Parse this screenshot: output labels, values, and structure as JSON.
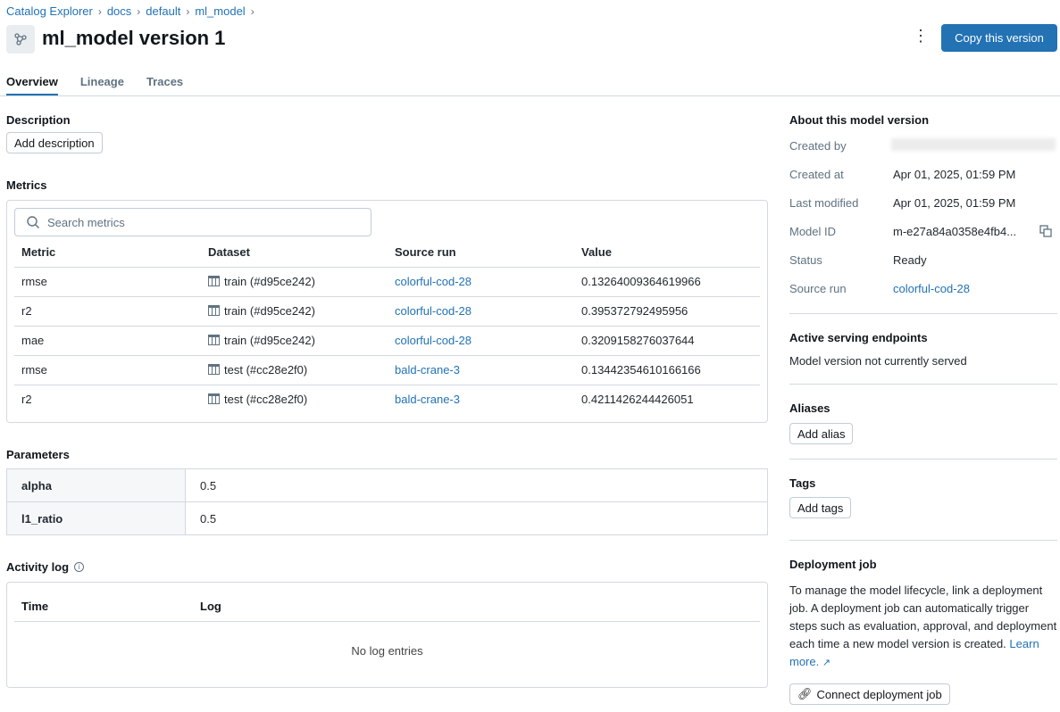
{
  "breadcrumb": [
    "Catalog Explorer",
    "docs",
    "default",
    "ml_model"
  ],
  "header": {
    "title": "ml_model version 1",
    "copy_label": "Copy this version",
    "icon": "model-icon"
  },
  "tabs": [
    "Overview",
    "Lineage",
    "Traces"
  ],
  "description": {
    "heading": "Description",
    "add_label": "Add description"
  },
  "metrics": {
    "heading": "Metrics",
    "search_placeholder": "Search metrics",
    "columns": [
      "Metric",
      "Dataset",
      "Source run",
      "Value"
    ],
    "rows": [
      {
        "metric": "rmse",
        "dataset": "train (#d95ce242)",
        "run": "colorful-cod-28",
        "value": "0.13264009364619966"
      },
      {
        "metric": "r2",
        "dataset": "train (#d95ce242)",
        "run": "colorful-cod-28",
        "value": "0.395372792495956"
      },
      {
        "metric": "mae",
        "dataset": "train (#d95ce242)",
        "run": "colorful-cod-28",
        "value": "0.3209158276037644"
      },
      {
        "metric": "rmse",
        "dataset": "test (#cc28e2f0)",
        "run": "bald-crane-3",
        "value": "0.13442354610166166"
      },
      {
        "metric": "r2",
        "dataset": "test (#cc28e2f0)",
        "run": "bald-crane-3",
        "value": "0.4211426244426051"
      }
    ]
  },
  "parameters": {
    "heading": "Parameters",
    "rows": [
      {
        "key": "alpha",
        "value": "0.5"
      },
      {
        "key": "l1_ratio",
        "value": "0.5"
      }
    ]
  },
  "activity": {
    "heading": "Activity log",
    "columns": [
      "Time",
      "Log"
    ],
    "empty": "No log entries"
  },
  "about": {
    "heading": "About this model version",
    "created_by_label": "Created by",
    "created_at_label": "Created at",
    "created_at": "Apr 01, 2025, 01:59 PM",
    "modified_label": "Last modified",
    "modified": "Apr 01, 2025, 01:59 PM",
    "id_label": "Model ID",
    "id": "m-e27a84a0358e4fb4...",
    "status_label": "Status",
    "status": "Ready",
    "run_label": "Source run",
    "run": "colorful-cod-28"
  },
  "serving": {
    "heading": "Active serving endpoints",
    "text": "Model version not currently served"
  },
  "aliases": {
    "heading": "Aliases",
    "add_label": "Add alias"
  },
  "tags": {
    "heading": "Tags",
    "add_label": "Add tags"
  },
  "deployment": {
    "heading": "Deployment job",
    "text": "To manage the model lifecycle, link a deployment job. A deployment job can automatically trigger steps such as evaluation, approval, and deployment each time a new model version is created.",
    "learn_more": "Learn more.",
    "connect_label": "Connect deployment job"
  }
}
